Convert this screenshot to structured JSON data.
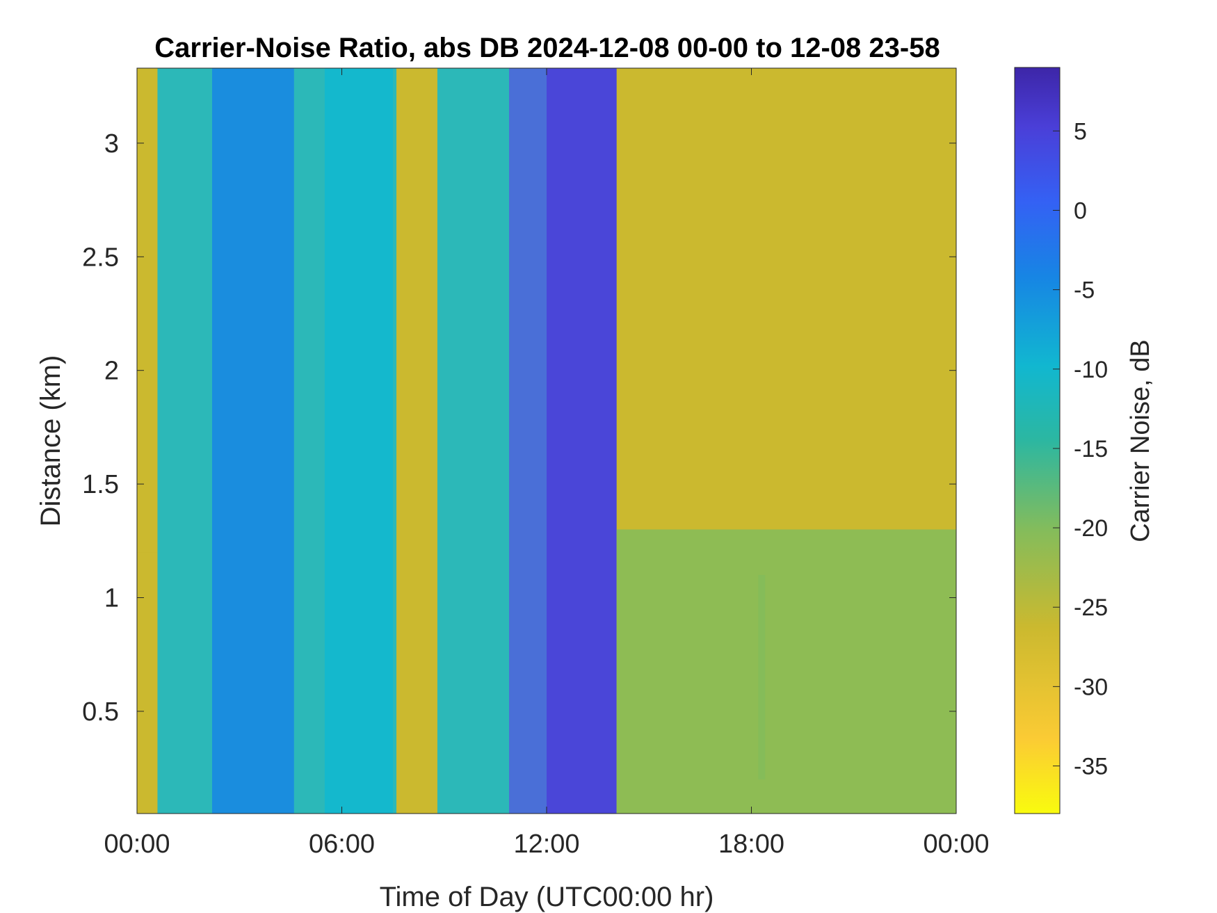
{
  "chart_data": {
    "type": "heatmap",
    "title": "Carrier-Noise Ratio, abs DB 2024-12-08 00-00 to 12-08 23-58",
    "xlabel": "Time of Day (UTC00:00 hr)",
    "ylabel": "Distance (km)",
    "x_ticks": [
      "00:00",
      "06:00",
      "12:00",
      "18:00",
      "00:00"
    ],
    "x_tick_hours": [
      0,
      6,
      12,
      18,
      24
    ],
    "xlim_hours": [
      0,
      24
    ],
    "y_ticks": [
      "0.5",
      "1",
      "1.5",
      "2",
      "2.5",
      "3"
    ],
    "y_tick_values": [
      0.5,
      1,
      1.5,
      2,
      2.5,
      3
    ],
    "ylim_km": [
      0.05,
      3.33
    ],
    "colorbar": {
      "label": "Carrier Noise, dB",
      "ticks": [
        "5",
        "0",
        "-5",
        "-10",
        "-15",
        "-20",
        "-25",
        "-30",
        "-35"
      ],
      "tick_values": [
        5,
        0,
        -5,
        -10,
        -15,
        -20,
        -25,
        -30,
        -35
      ],
      "range": [
        -38,
        9
      ],
      "colormap": [
        "#f9fb0e",
        "#fbcb34",
        "#cbb92f",
        "#84bc5b",
        "#2cb7a1",
        "#11b7d0",
        "#1785e4",
        "#3461f4",
        "#4a3fd8",
        "#3d26a8"
      ]
    },
    "background_value_db": -30,
    "features": [
      {
        "description": "weak aerosol band",
        "t_start_hours": 0.0,
        "t_end_hours": 1.0,
        "dist_km": [
          0.05,
          1.2
        ],
        "value_db": -26
      },
      {
        "description": "streaks",
        "t_start_hours": 0.6,
        "t_end_hours": 7.5,
        "value_db": -12
      },
      {
        "description": "wedge layer",
        "t_start_hours": 2.2,
        "t_end_hours": 4.6,
        "value_db": -9
      },
      {
        "description": "wide band",
        "t_start_hours": 5.5,
        "t_end_hours": 7.6,
        "value_db": -11
      },
      {
        "description": "streak",
        "t_start_hours": 8.8,
        "t_end_hours": 10.9,
        "value_db": -14
      },
      {
        "description": "strong band",
        "t_start_hours": 10.9,
        "t_end_hours": 14.05,
        "value_db": -4
      },
      {
        "description": "saturated band",
        "t_start_hours": 12.0,
        "t_end_hours": 14.05,
        "value_db": 2
      },
      {
        "description": "low-level layer",
        "t_start_hours": 14.05,
        "t_end_hours": 24.0,
        "dist_km": [
          0.05,
          1.3
        ],
        "value_db": -24
      },
      {
        "description": "streak",
        "t_start_hours": 18.2,
        "t_end_hours": 18.4,
        "dist_km": [
          0.2,
          1.1
        ],
        "value_db": -20
      }
    ]
  }
}
